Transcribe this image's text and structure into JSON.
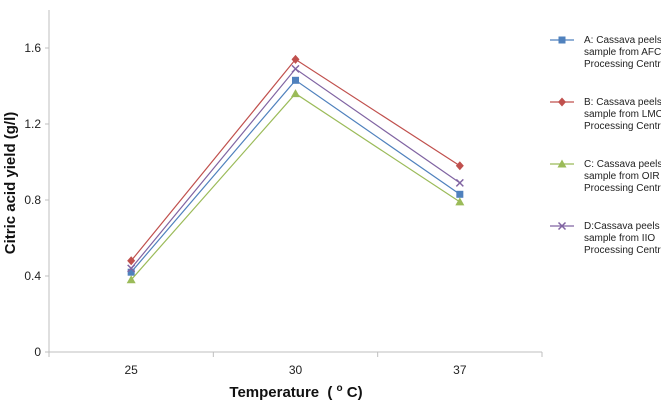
{
  "chart_data": {
    "type": "line",
    "categories": [
      "25",
      "30",
      "37"
    ],
    "xlabel": "Temperature",
    "xlabel_unit_base": "(",
    "xlabel_unit_sup": "o",
    "xlabel_unit_tail": "C)",
    "ylabel": "Citric acid yield (g/l)",
    "ylim": [
      0,
      1.8
    ],
    "yticks": [
      0,
      0.4,
      0.8,
      1.2,
      1.6
    ],
    "ytick_labels": [
      "0",
      "0.4",
      "0.8",
      "1.2",
      "1.6"
    ],
    "grid": false,
    "legend_position": "right",
    "series": [
      {
        "name": "A: Cassava peels sample from AFC Processing Centre",
        "legend_lines": [
          "A: Cassava peels",
          "sample from AFC",
          "Processing Centre"
        ],
        "values": [
          0.42,
          1.43,
          0.83
        ],
        "color": "#4f81bd",
        "marker": "square"
      },
      {
        "name": "B: Cassava peels sample from LMC Processing Centre",
        "legend_lines": [
          "B: Cassava peels",
          "sample from LMC",
          "Processing Centre"
        ],
        "values": [
          0.48,
          1.54,
          0.98
        ],
        "color": "#c0504d",
        "marker": "diamond"
      },
      {
        "name": "C: Cassava peels sample from OIR Processing Centre",
        "legend_lines": [
          "C: Cassava peels",
          "sample from OIR",
          "Processing Centre"
        ],
        "values": [
          0.38,
          1.36,
          0.79
        ],
        "color": "#9bbb59",
        "marker": "triangle"
      },
      {
        "name": "D:Cassava peels sample from IIO Processing Centre",
        "legend_lines": [
          "D:Cassava peels",
          "sample from IIO",
          "Processing Centre"
        ],
        "values": [
          0.44,
          1.49,
          0.89
        ],
        "color": "#8064a2",
        "marker": "x"
      }
    ]
  }
}
